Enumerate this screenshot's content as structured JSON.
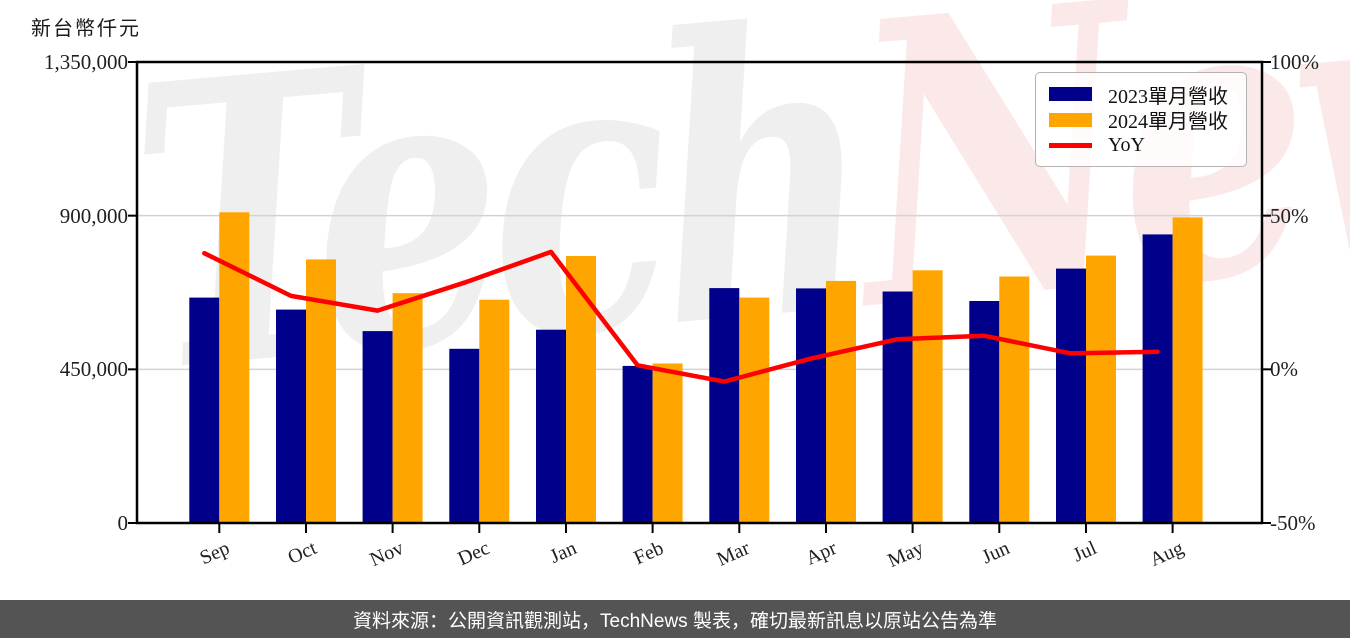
{
  "chart": {
    "unit_label": "新台幣仟元",
    "footer_text": "資料來源：公開資訊觀測站，TechNews 製表，確切最新訊息以原站公告為準"
  },
  "watermark": {
    "gray_text": "Tech",
    "pink_text": "News",
    "gray_color": "#80808021",
    "pink_color": "#e146461f"
  },
  "legend": {
    "items": [
      {
        "label": "2023單月營收",
        "type": "bar",
        "color": "#00008b"
      },
      {
        "label": "2024單月營收",
        "type": "bar",
        "color": "#ffa500"
      },
      {
        "label": "YoY",
        "type": "line",
        "color": "#fe0000"
      }
    ]
  },
  "chart_data": {
    "type": "bar",
    "subtype": "grouped bars with line overlay on secondary axis",
    "categories": [
      "Sep",
      "Oct",
      "Nov",
      "Dec",
      "Jan",
      "Feb",
      "Mar",
      "Apr",
      "May",
      "Jun",
      "Jul",
      "Aug"
    ],
    "series": [
      {
        "name": "2023單月營收",
        "type": "bar",
        "axis": "left",
        "color": "#00008b",
        "values": [
          660000,
          625000,
          562000,
          510000,
          566000,
          460000,
          688000,
          687000,
          678000,
          650000,
          745000,
          845000
        ]
      },
      {
        "name": "2024單月營收",
        "type": "bar",
        "axis": "left",
        "color": "#ffa500",
        "values": [
          910000,
          772000,
          673000,
          654000,
          782000,
          467000,
          660000,
          709000,
          740000,
          722000,
          783000,
          895000
        ]
      },
      {
        "name": "YoY",
        "type": "line",
        "axis": "right",
        "color": "#fe0000",
        "values": [
          37.8,
          23.9,
          19.1,
          28.2,
          38.2,
          1.3,
          -4.0,
          3.5,
          9.8,
          10.9,
          5.2,
          5.7
        ]
      }
    ],
    "title": "",
    "xlabel": "",
    "ylabel_left": "新台幣仟元",
    "left_axis": {
      "range": [
        0,
        1350000
      ],
      "ticks": [
        "1,350,000",
        "900,000",
        "450,000",
        "0"
      ],
      "tick_values": [
        1350000,
        900000,
        450000,
        0
      ],
      "grid_values": [
        900000,
        450000
      ]
    },
    "right_axis": {
      "range": [
        -50,
        100
      ],
      "ticks": [
        "100%",
        "50%",
        "0%",
        "-50%"
      ],
      "tick_values": [
        100,
        50,
        0,
        -50
      ]
    },
    "grid": "horizontal only, light gray",
    "legend_position": "top-right inside plot",
    "colors": {
      "grid": "#d3d3d3",
      "spine": "#000000",
      "footer_bg": "#545454"
    }
  }
}
